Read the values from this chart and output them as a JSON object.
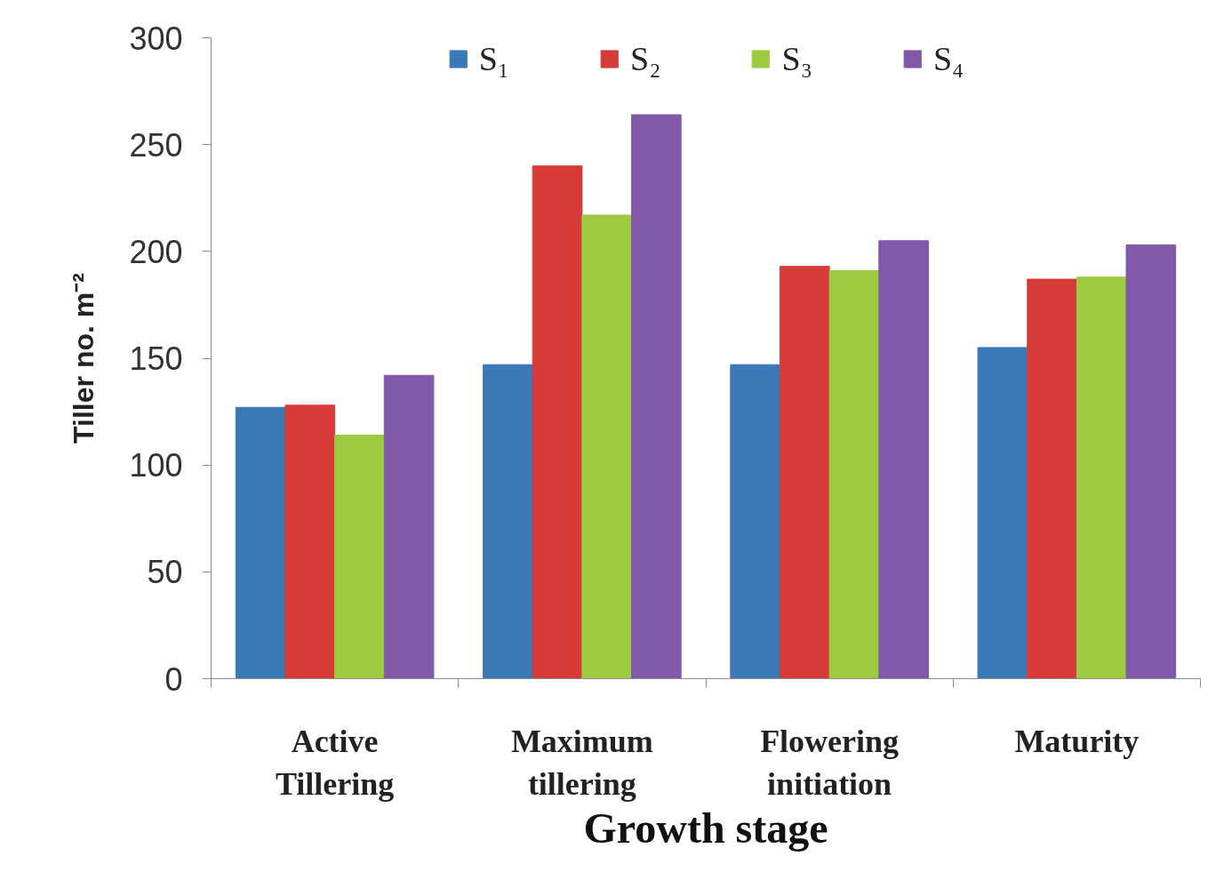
{
  "chart_data": {
    "type": "bar",
    "xlabel": "Growth stage",
    "ylabel": "Tiller no. m⁻²",
    "categories": [
      "Active Tillering",
      "Maximum tillering",
      "Flowering initiation",
      "Maturity"
    ],
    "series": [
      {
        "name": "S₁",
        "color": "#3a78b8",
        "values": [
          127,
          147,
          147,
          155
        ]
      },
      {
        "name": "S₂",
        "color": "#d63b38",
        "values": [
          128,
          240,
          193,
          187
        ]
      },
      {
        "name": "S₃",
        "color": "#9ccb42",
        "values": [
          114,
          217,
          191,
          188
        ]
      },
      {
        "name": "S₄",
        "color": "#8259a8",
        "values": [
          142,
          264,
          205,
          203
        ]
      }
    ],
    "ylim": [
      0,
      300
    ],
    "yticks": [
      0,
      50,
      100,
      150,
      200,
      250,
      300
    ],
    "grid": false,
    "legend": "top"
  }
}
